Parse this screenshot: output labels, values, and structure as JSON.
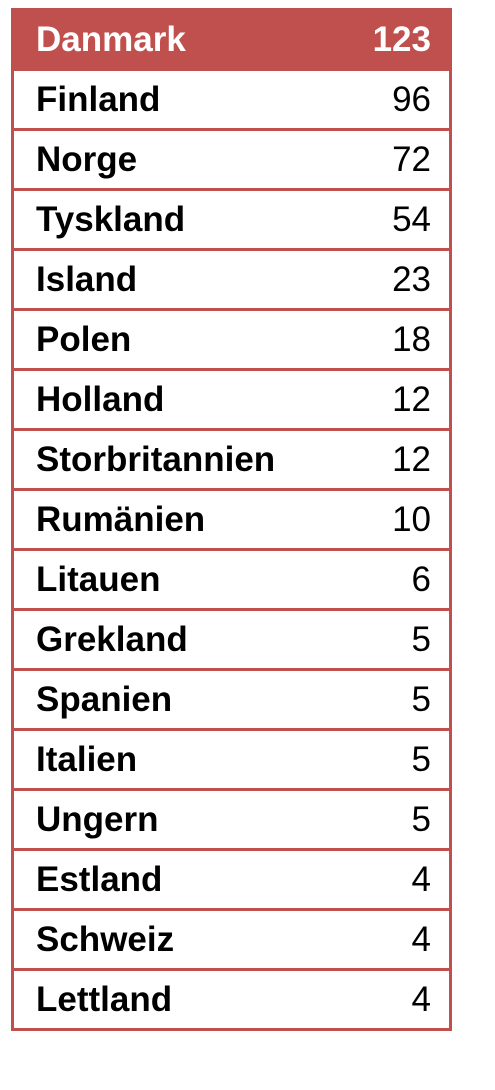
{
  "table": {
    "header": {
      "country": "Danmark",
      "value": "123"
    },
    "rows": [
      {
        "country": "Finland",
        "value": "96"
      },
      {
        "country": "Norge",
        "value": "72"
      },
      {
        "country": "Tyskland",
        "value": "54"
      },
      {
        "country": "Island",
        "value": "23"
      },
      {
        "country": "Polen",
        "value": "18"
      },
      {
        "country": "Holland",
        "value": "12"
      },
      {
        "country": "Storbritannien",
        "value": "12"
      },
      {
        "country": "Rumänien",
        "value": "10"
      },
      {
        "country": "Litauen",
        "value": "6"
      },
      {
        "country": "Grekland",
        "value": "5"
      },
      {
        "country": "Spanien",
        "value": "5"
      },
      {
        "country": "Italien",
        "value": "5"
      },
      {
        "country": "Ungern",
        "value": "5"
      },
      {
        "country": "Estland",
        "value": "4"
      },
      {
        "country": "Schweiz",
        "value": "4"
      },
      {
        "country": "Lettland",
        "value": "4"
      }
    ]
  },
  "colors": {
    "accent": "#c0504d",
    "header_text": "#ffffff",
    "body_text": "#000000"
  }
}
